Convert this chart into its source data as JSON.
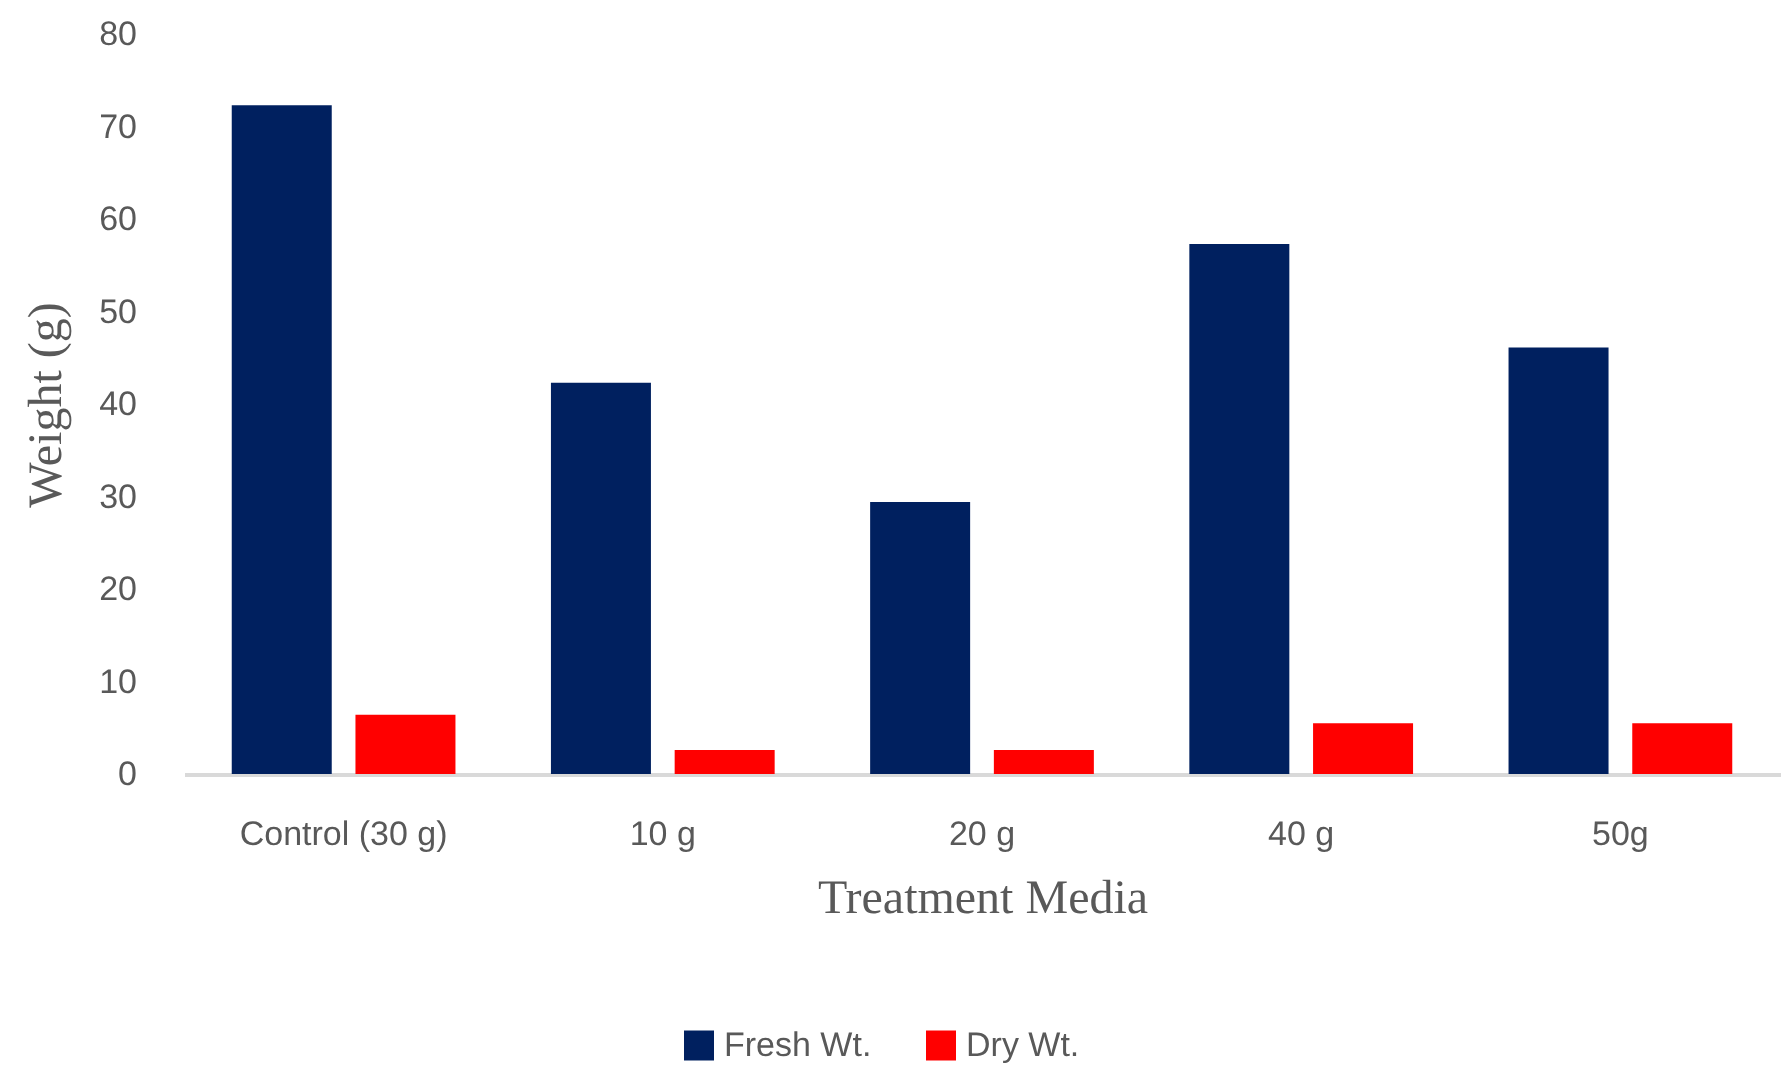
{
  "chart_data": {
    "type": "bar",
    "xlabel": "Treatment Media",
    "ylabel": "Weight (g)",
    "categories": [
      "Control (30 g)",
      "10 g",
      "20 g",
      "40 g",
      "50g"
    ],
    "series": [
      {
        "name": "Fresh Wt.",
        "color": "#00205f",
        "values": [
          72.3,
          42.3,
          29.4,
          57.3,
          46.1
        ]
      },
      {
        "name": "Dry Wt.",
        "color": "#ff0000",
        "values": [
          6.4,
          2.6,
          2.6,
          5.5,
          5.5
        ]
      }
    ],
    "ylim": [
      0,
      80
    ],
    "yticks": [
      0,
      10,
      20,
      30,
      40,
      50,
      60,
      70,
      80
    ],
    "grid": false,
    "legend": "bottom"
  }
}
